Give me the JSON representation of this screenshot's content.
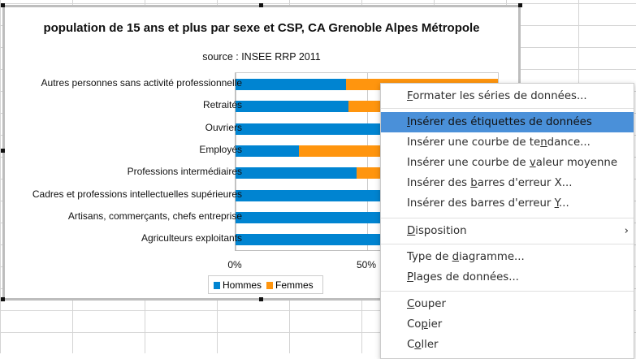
{
  "chart_data": {
    "type": "bar",
    "stacked": "percent",
    "title": "population de 15 ans et plus par sexe et CSP, CA Grenoble Alpes Métropole",
    "subtitle": "source : INSEE RRP 2011",
    "categories": [
      "Autres personnes sans activité professionnelle",
      "Retraités",
      "Ouvriers",
      "Employés",
      "Professions intermédiaires",
      "Cadres et professions intellectuelles supérieures",
      "Artisans, commerçants, chefs entreprise",
      "Agriculteurs exploitants"
    ],
    "series": [
      {
        "name": "Hommes",
        "color": "#0084d1",
        "values": [
          42,
          43,
          78,
          24,
          46,
          57,
          70,
          65
        ]
      },
      {
        "name": "Femmes",
        "color": "#ff950e",
        "values": [
          58,
          57,
          22,
          76,
          54,
          43,
          30,
          35
        ]
      }
    ],
    "xticks": [
      "0%",
      "50%"
    ],
    "xlim": [
      0,
      100
    ],
    "legend": "bottom"
  },
  "menu": [
    {
      "pre": "",
      "key": "F",
      "post": "ormater les séries de données..."
    },
    {
      "pre": "",
      "key": "I",
      "post": "nsérer des étiquettes de données",
      "selected": true
    },
    {
      "pre": "Insérer une courbe de te",
      "key": "n",
      "post": "dance..."
    },
    {
      "pre": "Insérer une courbe de ",
      "key": "v",
      "post": "aleur moyenne"
    },
    {
      "pre": "Insérer des ",
      "key": "b",
      "post": "arres d'erreur X..."
    },
    {
      "pre": "Insérer des barres d'erreur ",
      "key": "Y",
      "post": "..."
    },
    {
      "pre": "",
      "key": "D",
      "post": "isposition",
      "submenu": true
    },
    {
      "pre": "Type de ",
      "key": "d",
      "post": "iagramme..."
    },
    {
      "pre": "",
      "key": "P",
      "post": "lages de données..."
    },
    {
      "pre": "",
      "key": "C",
      "post": "ouper"
    },
    {
      "pre": "Co",
      "key": "p",
      "post": "ier"
    },
    {
      "pre": "C",
      "key": "o",
      "post": "ller"
    }
  ]
}
